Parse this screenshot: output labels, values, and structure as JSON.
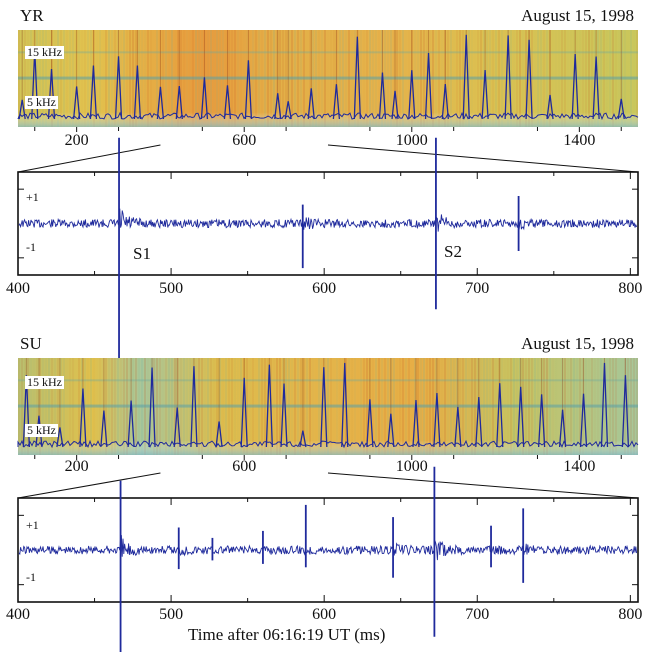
{
  "chart_data": [
    {
      "type": "heatmap",
      "station": "YR",
      "date": "August 15, 1998",
      "freq_labels": [
        "15 kHz",
        "5 kHz"
      ],
      "x_ticks": [
        200,
        600,
        1000,
        1400
      ],
      "xlim": [
        60,
        1540
      ],
      "zoom_range": [
        400,
        800
      ],
      "spike_times": [
        70,
        100,
        140,
        200,
        240,
        300,
        345,
        400,
        445,
        505,
        560,
        610,
        680,
        705,
        760,
        820,
        870,
        930,
        960,
        1000,
        1040,
        1080,
        1130,
        1175,
        1230,
        1280,
        1330,
        1390,
        1440,
        1500
      ]
    },
    {
      "type": "line",
      "station": "YR",
      "x_ticks": [
        400,
        500,
        600,
        700,
        800
      ],
      "xlim": [
        400,
        805
      ],
      "y_ticks": [
        "+1",
        "-1"
      ],
      "ylim": [
        -1.5,
        1.5
      ],
      "annotations": [
        {
          "text": "S1",
          "x": 466
        },
        {
          "text": "S2",
          "x": 673
        }
      ],
      "spikes": [
        {
          "t": 466,
          "up": 2.5,
          "down": 4.0
        },
        {
          "t": 586,
          "up": 0.55,
          "down": 1.3
        },
        {
          "t": 673,
          "up": 2.5,
          "down": 2.5
        },
        {
          "t": 727,
          "up": 0.8,
          "down": 0.8
        }
      ]
    },
    {
      "type": "heatmap",
      "station": "SU",
      "date": "August 15, 1998",
      "freq_labels": [
        "15 kHz",
        "5 kHz"
      ],
      "x_ticks": [
        200,
        600,
        1000,
        1400
      ],
      "xlim": [
        60,
        1540
      ],
      "zoom_range": [
        400,
        800
      ],
      "spike_times": [
        80,
        110,
        160,
        215,
        265,
        330,
        380,
        440,
        480,
        540,
        600,
        660,
        695,
        740,
        790,
        840,
        900,
        950,
        1010,
        1060,
        1110,
        1160,
        1210,
        1260,
        1310,
        1360,
        1410,
        1460,
        1510
      ]
    },
    {
      "type": "line",
      "station": "SU",
      "x_ticks": [
        400,
        500,
        600,
        700,
        800
      ],
      "xlim": [
        400,
        805
      ],
      "y_ticks": [
        "+1",
        "-1"
      ],
      "ylim": [
        -1.5,
        1.5
      ],
      "xlabel": "Time after 06:16:19 UT (ms)",
      "spikes": [
        {
          "t": 467,
          "up": 2.0,
          "down": 3.0
        },
        {
          "t": 505,
          "up": 0.65,
          "down": 0.55
        },
        {
          "t": 527,
          "up": 0.35,
          "down": 0.3
        },
        {
          "t": 560,
          "up": 0.55,
          "down": 0.4
        },
        {
          "t": 588,
          "up": 1.3,
          "down": 0.5
        },
        {
          "t": 645,
          "up": 0.95,
          "down": 0.8
        },
        {
          "t": 672,
          "up": 2.4,
          "down": 2.5
        },
        {
          "t": 709,
          "up": 0.7,
          "down": 0.5
        },
        {
          "t": 730,
          "up": 1.2,
          "down": 0.95
        }
      ]
    }
  ]
}
